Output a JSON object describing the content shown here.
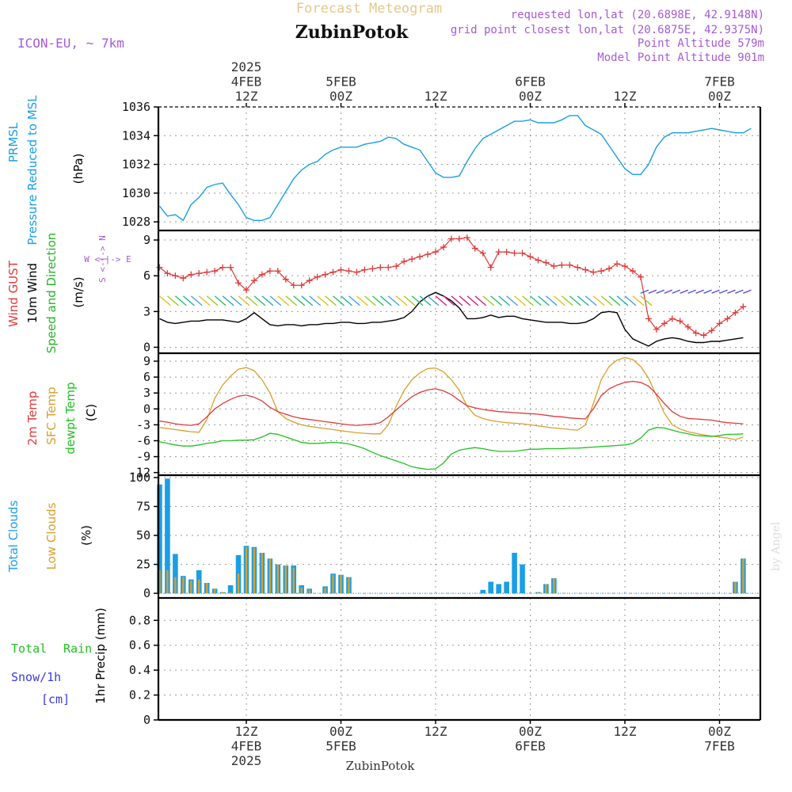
{
  "header": {
    "title": "Forecast Meteogram",
    "location": "ZubinPotok",
    "model": "ICON-EU, ~ 7km",
    "requested": "requested lon,lat (20.6898E, 42.9148N)",
    "closest": "grid point closest lon,lat (20.6875E, 42.9375N)",
    "point_altitude": "Point Altitude 579m",
    "model_altitude": "Model Point Altitude 901m",
    "watermark": "by Angel",
    "footer_location": "ZubinPotok"
  },
  "colors": {
    "prmsl": "#1a9ee6",
    "gust": "#e03a3a",
    "wind": "#000000",
    "wind_dir": "#28b428",
    "temp2m": "#e03a3a",
    "sfc": "#d9a02a",
    "dewpt": "#22c022",
    "total_clouds": "#1a9ee6",
    "low_clouds": "#d9a02a",
    "rain": "#22c022",
    "snow": "#3a3ae0",
    "title_gold": "#e3c88a",
    "purple": "#a55ad6"
  },
  "time_axis": {
    "top": [
      {
        "h": 0,
        "lines": [
          "2025",
          "4FEB",
          "12Z"
        ]
      },
      {
        "h": 12,
        "lines": [
          "5FEB",
          "00Z"
        ]
      },
      {
        "h": 24,
        "lines": [
          "12Z"
        ]
      },
      {
        "h": 36,
        "lines": [
          "6FEB",
          "00Z"
        ]
      },
      {
        "h": 48,
        "lines": [
          "12Z"
        ]
      },
      {
        "h": 60,
        "lines": [
          "7FEB",
          "00Z"
        ]
      }
    ],
    "bottom": [
      {
        "h": 0,
        "lines": [
          "12Z",
          "4FEB",
          "2025"
        ]
      },
      {
        "h": 12,
        "lines": [
          "00Z",
          "5FEB"
        ]
      },
      {
        "h": 24,
        "lines": [
          "12Z"
        ]
      },
      {
        "h": 36,
        "lines": [
          "00Z",
          "6FEB"
        ]
      },
      {
        "h": 48,
        "lines": [
          "12Z"
        ]
      },
      {
        "h": 60,
        "lines": [
          "00Z",
          "7FEB"
        ]
      }
    ]
  },
  "panels": {
    "pressure": {
      "labels": [
        "PRMSL",
        "Pressure Reduced to MSL"
      ],
      "unit": "(hPa)",
      "ticks": [
        "1028",
        "1030",
        "1032",
        "1034",
        "1036"
      ]
    },
    "wind": {
      "labels": [
        "Wind GUST",
        "10m Wind",
        "Speed and Direction"
      ],
      "unit": "(m/s)",
      "ticks": [
        "0",
        "3",
        "6",
        "9"
      ],
      "compass": [
        "N",
        "W <-|-> E",
        "S"
      ]
    },
    "temp": {
      "labels": [
        "2m Temp",
        "SFC Temp",
        "dewpt Temp"
      ],
      "unit": "(C)",
      "ticks": [
        "-12",
        "-9",
        "-6",
        "-3",
        "0",
        "3",
        "6",
        "9"
      ]
    },
    "clouds": {
      "labels": [
        "Total Clouds",
        "Low Clouds"
      ],
      "unit": "(%)",
      "ticks": [
        "0",
        "25",
        "50",
        "75",
        "100"
      ]
    },
    "precip": {
      "labels": [
        "Total",
        "Rain",
        "Snow/1h",
        "[cm]"
      ],
      "axis_label": "1hr Precip (mm)",
      "ticks": [
        "0",
        "0.2",
        "0.4",
        "0.6",
        "0.8"
      ]
    }
  },
  "chart_data": [
    {
      "type": "line",
      "title": "PRMSL Pressure Reduced to MSL",
      "ylabel": "(hPa)",
      "ylim": [
        1027.4,
        1036
      ],
      "x_hours_from_4FEB_12Z": [
        -11,
        -10,
        -9,
        -8,
        -7,
        -6,
        -5,
        -4,
        -3,
        -2,
        -1,
        0,
        1,
        2,
        3,
        4,
        5,
        6,
        7,
        8,
        9,
        10,
        11,
        12,
        13,
        14,
        15,
        16,
        17,
        18,
        19,
        20,
        21,
        22,
        23,
        24,
        25,
        26,
        27,
        28,
        29,
        30,
        31,
        32,
        33,
        34,
        35,
        36,
        37,
        38,
        39,
        40,
        41,
        42,
        43,
        44,
        45,
        46,
        47,
        48,
        49,
        50,
        51,
        52,
        53,
        54,
        55,
        56,
        57,
        58,
        59,
        60,
        61,
        62,
        63,
        64
      ],
      "series": [
        {
          "name": "PRMSL",
          "values": [
            1029.1,
            1028.4,
            1028.5,
            1028.1,
            1029.2,
            1029.7,
            1030.4,
            1030.6,
            1030.7,
            1029.9,
            1029.2,
            1028.3,
            1028.1,
            1028.1,
            1028.3,
            1029.2,
            1030.1,
            1031.0,
            1031.6,
            1032.0,
            1032.2,
            1032.7,
            1033.0,
            1033.2,
            1033.2,
            1033.2,
            1033.4,
            1033.5,
            1033.6,
            1033.9,
            1033.8,
            1033.4,
            1033.2,
            1033.0,
            1032.2,
            1031.4,
            1031.1,
            1031.1,
            1031.2,
            1032.2,
            1033.1,
            1033.8,
            1034.1,
            1034.4,
            1034.7,
            1035.0,
            1035.0,
            1035.1,
            1034.9,
            1034.9,
            1034.9,
            1035.1,
            1035.4,
            1035.4,
            1034.7,
            1034.4,
            1034.1,
            1033.3,
            1032.5,
            1031.7,
            1031.3,
            1031.3,
            1032.0,
            1033.2,
            1033.9,
            1034.2,
            1034.2,
            1034.2,
            1034.3,
            1034.4,
            1034.5,
            1034.4,
            1034.3,
            1034.2,
            1034.2,
            1034.5
          ]
        }
      ]
    },
    {
      "type": "line",
      "title": "Wind GUST / 10m Wind Speed and Direction",
      "ylabel": "(m/s)",
      "ylim": [
        -0.5,
        9.8
      ],
      "x_hours_from_4FEB_12Z": [
        -11,
        -10,
        -9,
        -8,
        -7,
        -6,
        -5,
        -4,
        -3,
        -2,
        -1,
        0,
        1,
        2,
        3,
        4,
        5,
        6,
        7,
        8,
        9,
        10,
        11,
        12,
        13,
        14,
        15,
        16,
        17,
        18,
        19,
        20,
        21,
        22,
        23,
        24,
        25,
        26,
        27,
        28,
        29,
        30,
        31,
        32,
        33,
        34,
        35,
        36,
        37,
        38,
        39,
        40,
        41,
        42,
        43,
        44,
        45,
        46,
        47,
        48,
        49,
        50,
        51,
        52,
        53,
        54,
        55,
        56,
        57,
        58,
        59,
        60,
        61,
        62,
        63,
        64
      ],
      "series": [
        {
          "name": "Wind GUST",
          "values": [
            6.7,
            6.2,
            6.0,
            5.8,
            6.1,
            6.2,
            6.3,
            6.4,
            6.7,
            6.7,
            5.4,
            4.8,
            5.6,
            6.1,
            6.4,
            6.4,
            5.7,
            5.2,
            5.2,
            5.6,
            5.9,
            6.1,
            6.3,
            6.5,
            6.4,
            6.3,
            6.5,
            6.6,
            6.7,
            6.7,
            6.8,
            7.2,
            7.4,
            7.6,
            7.8,
            8.0,
            8.4,
            9.1,
            9.1,
            9.2,
            8.3,
            7.9,
            6.7,
            8.0,
            8.0,
            7.9,
            7.9,
            7.6,
            7.3,
            7.1,
            6.8,
            6.9,
            6.9,
            6.7,
            6.5,
            6.3,
            6.4,
            6.6,
            7.0,
            6.8,
            6.4,
            5.9,
            2.4,
            1.5,
            2.0,
            2.4,
            2.2,
            1.7,
            1.2,
            1.0,
            1.4,
            2.0,
            2.4,
            2.9,
            3.4
          ]
        },
        {
          "name": "10m Wind",
          "values": [
            2.4,
            2.1,
            2.0,
            2.1,
            2.2,
            2.2,
            2.3,
            2.3,
            2.3,
            2.2,
            2.1,
            2.4,
            2.9,
            2.4,
            1.9,
            1.8,
            1.9,
            1.9,
            1.8,
            1.9,
            1.9,
            2.0,
            2.0,
            2.1,
            2.1,
            2.0,
            2.0,
            2.1,
            2.1,
            2.2,
            2.3,
            2.5,
            3.0,
            3.8,
            4.3,
            4.6,
            4.3,
            3.9,
            3.3,
            2.4,
            2.4,
            2.5,
            2.7,
            2.5,
            2.6,
            2.6,
            2.4,
            2.3,
            2.2,
            2.1,
            2.1,
            2.1,
            2.0,
            2.0,
            2.1,
            2.4,
            2.9,
            3.0,
            2.9,
            1.5,
            0.7,
            0.4,
            0.1,
            0.5,
            0.7,
            0.8,
            0.7,
            0.5,
            0.4,
            0.4,
            0.5,
            0.5,
            0.6,
            0.7,
            0.8
          ]
        }
      ]
    },
    {
      "type": "line",
      "title": "2m Temp / SFC Temp / dewpt Temp",
      "ylabel": "(C)",
      "ylim": [
        -12.5,
        10.5
      ],
      "x_hours_from_4FEB_12Z": [
        -11,
        -10,
        -9,
        -8,
        -7,
        -6,
        -5,
        -4,
        -3,
        -2,
        -1,
        0,
        1,
        2,
        3,
        4,
        5,
        6,
        7,
        8,
        9,
        10,
        11,
        12,
        13,
        14,
        15,
        16,
        17,
        18,
        19,
        20,
        21,
        22,
        23,
        24,
        25,
        26,
        27,
        28,
        29,
        30,
        31,
        32,
        33,
        34,
        35,
        36,
        37,
        38,
        39,
        40,
        41,
        42,
        43,
        44,
        45,
        46,
        47,
        48,
        49,
        50,
        51,
        52,
        53,
        54,
        55,
        56,
        57,
        58,
        59,
        60,
        61,
        62,
        63,
        64
      ],
      "series": [
        {
          "name": "2m Temp",
          "values": [
            -2.3,
            -2.5,
            -2.8,
            -3.0,
            -3.1,
            -2.8,
            -1.5,
            0.0,
            1.0,
            1.8,
            2.4,
            2.6,
            2.2,
            1.5,
            0.3,
            -0.5,
            -1.0,
            -1.5,
            -1.8,
            -2.0,
            -2.2,
            -2.4,
            -2.6,
            -2.8,
            -3.0,
            -3.1,
            -3.0,
            -2.9,
            -2.6,
            -1.5,
            -0.2,
            1.1,
            2.3,
            3.1,
            3.6,
            3.8,
            3.4,
            2.7,
            1.6,
            0.6,
            0.2,
            -0.1,
            -0.3,
            -0.5,
            -0.6,
            -0.7,
            -0.8,
            -0.9,
            -1.0,
            -1.2,
            -1.4,
            -1.5,
            -1.7,
            -1.8,
            -1.9,
            0.0,
            2.5,
            3.8,
            4.5,
            5.0,
            5.2,
            5.0,
            4.3,
            2.8,
            1.0,
            -0.5,
            -1.4,
            -1.8,
            -1.9,
            -2.0,
            -2.1,
            -2.4,
            -2.6,
            -2.7,
            -2.8
          ]
        },
        {
          "name": "SFC Temp",
          "values": [
            -3.5,
            -3.7,
            -3.9,
            -4.1,
            -4.3,
            -4.4,
            -2.0,
            2.0,
            4.5,
            6.2,
            7.5,
            7.8,
            7.2,
            5.5,
            3.0,
            -0.5,
            -1.8,
            -2.5,
            -3.0,
            -3.3,
            -3.5,
            -3.7,
            -3.9,
            -4.1,
            -4.3,
            -4.5,
            -4.6,
            -4.7,
            -4.7,
            -3.0,
            0.5,
            3.5,
            5.5,
            6.8,
            7.6,
            7.7,
            7.0,
            5.5,
            3.5,
            0.5,
            -1.2,
            -1.8,
            -2.2,
            -2.4,
            -2.6,
            -2.7,
            -2.8,
            -3.0,
            -3.2,
            -3.4,
            -3.6,
            -3.7,
            -3.9,
            -4.0,
            -3.0,
            1.0,
            5.5,
            8.0,
            9.2,
            9.7,
            9.3,
            8.0,
            5.8,
            2.5,
            -0.8,
            -3.0,
            -3.8,
            -4.3,
            -4.6,
            -4.9,
            -5.1,
            -5.3,
            -5.5,
            -5.8,
            -5.3
          ]
        },
        {
          "name": "dewpt Temp",
          "values": [
            -6.2,
            -6.5,
            -6.8,
            -7.0,
            -7.0,
            -6.8,
            -6.5,
            -6.3,
            -6.0,
            -6.0,
            -5.9,
            -5.9,
            -5.8,
            -5.3,
            -4.6,
            -4.8,
            -5.3,
            -5.8,
            -6.3,
            -6.5,
            -6.5,
            -6.4,
            -6.3,
            -6.4,
            -6.6,
            -7.0,
            -7.5,
            -8.2,
            -8.8,
            -9.3,
            -9.8,
            -10.3,
            -10.9,
            -11.2,
            -11.4,
            -11.3,
            -10.2,
            -8.5,
            -7.8,
            -7.5,
            -7.3,
            -7.5,
            -7.8,
            -8.0,
            -8.0,
            -8.0,
            -7.8,
            -7.6,
            -7.6,
            -7.5,
            -7.5,
            -7.5,
            -7.4,
            -7.4,
            -7.3,
            -7.2,
            -7.1,
            -7.0,
            -6.9,
            -6.8,
            -6.5,
            -5.5,
            -4.0,
            -3.5,
            -3.6,
            -4.0,
            -4.4,
            -4.7,
            -5.0,
            -5.1,
            -5.2,
            -5.0,
            -4.8,
            -4.8,
            -4.7
          ]
        }
      ]
    },
    {
      "type": "bar",
      "title": "Total Clouds / Low Clouds",
      "ylabel": "(%)",
      "ylim": [
        -4,
        102
      ],
      "x_hours_from_4FEB_12Z": [
        -11,
        -10,
        -9,
        -8,
        -7,
        -6,
        -5,
        -4,
        -3,
        -2,
        -1,
        0,
        1,
        2,
        3,
        4,
        5,
        6,
        7,
        8,
        9,
        10,
        11,
        12,
        13,
        14,
        15,
        16,
        17,
        18,
        19,
        20,
        21,
        22,
        23,
        24,
        25,
        26,
        27,
        28,
        29,
        30,
        31,
        32,
        33,
        34,
        35,
        36,
        37,
        38,
        39,
        40,
        41,
        42,
        43,
        44,
        45,
        46,
        47,
        48,
        49,
        50,
        51,
        52,
        53,
        54,
        55,
        56,
        57,
        58,
        59,
        60,
        61,
        62,
        63,
        64
      ],
      "series": [
        {
          "name": "Total Clouds",
          "values": [
            94,
            99,
            34,
            15,
            12,
            20,
            9,
            4,
            1,
            7,
            33,
            41,
            40,
            35,
            30,
            25,
            24,
            24,
            7,
            4,
            0,
            6,
            17,
            16,
            14,
            0,
            0,
            0,
            0,
            0,
            0,
            0,
            0,
            0,
            0,
            0,
            0,
            0,
            0,
            0,
            0,
            3,
            10,
            8,
            10,
            35,
            25,
            0,
            1,
            8,
            13,
            0,
            0,
            0,
            0,
            0,
            0,
            0,
            0,
            0,
            0,
            0,
            0,
            0,
            0,
            0,
            0,
            0,
            0,
            0,
            0,
            0,
            0,
            10,
            30
          ]
        },
        {
          "name": "Low Clouds",
          "values": [
            20,
            20,
            14,
            14,
            11,
            12,
            9,
            4,
            1,
            1,
            17,
            40,
            39,
            35,
            30,
            25,
            24,
            22,
            5,
            3,
            0,
            5,
            16,
            16,
            14,
            0,
            0,
            0,
            0,
            0,
            0,
            0,
            0,
            0,
            0,
            0,
            0,
            0,
            0,
            0,
            0,
            0,
            0,
            0,
            0,
            0,
            0,
            0,
            1,
            8,
            13,
            0,
            0,
            0,
            0,
            0,
            0,
            0,
            0,
            0,
            0,
            0,
            0,
            0,
            0,
            0,
            0,
            0,
            0,
            0,
            0,
            0,
            0,
            10,
            30
          ]
        }
      ]
    },
    {
      "type": "line",
      "title": "1hr Precip (mm)",
      "ylabel": "1hr Precip (mm)",
      "ylim": [
        0,
        0.98
      ],
      "x_hours_from_4FEB_12Z": [
        -11,
        64
      ],
      "series": [
        {
          "name": "Total Rain",
          "values": [
            0,
            0
          ]
        }
      ]
    }
  ]
}
